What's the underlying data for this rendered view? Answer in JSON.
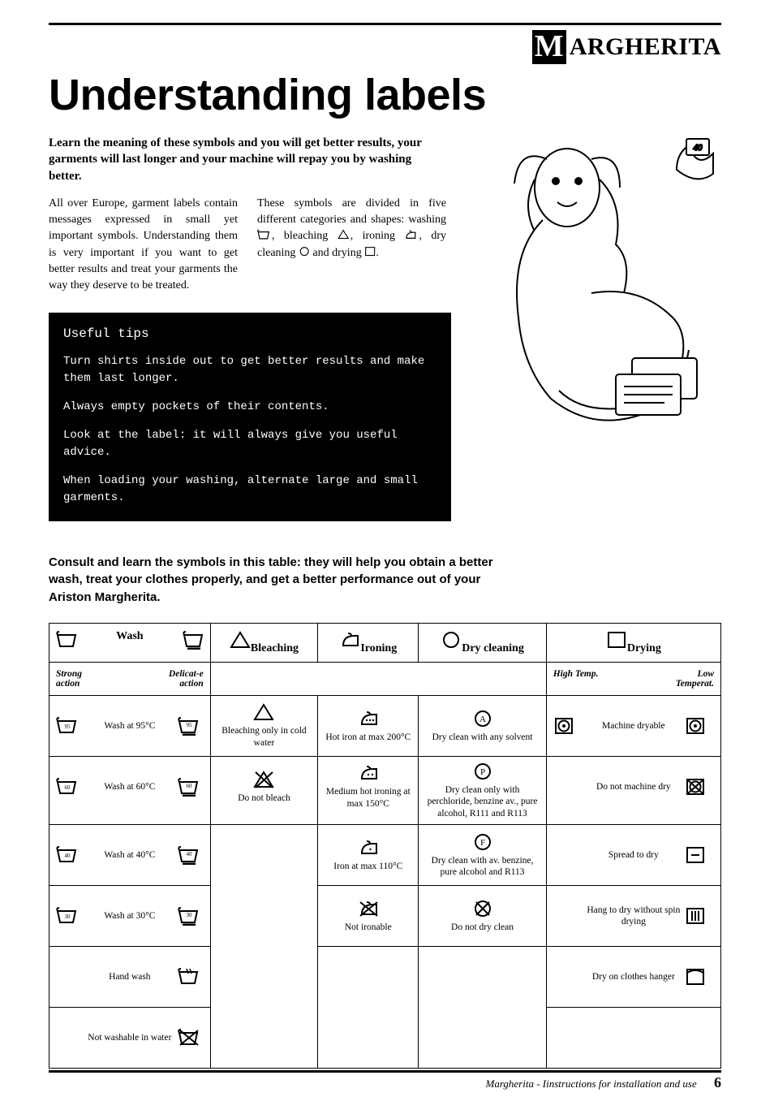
{
  "brand": {
    "initial": "M",
    "rest": "ARGHERITA"
  },
  "title": "Understanding labels",
  "lead": "Learn the meaning of these symbols and you will get better results, your garments will last longer and your machine will repay you by washing better.",
  "intro_col1": "All over Europe, garment labels contain messages expressed in small yet important symbols. Understanding them is very important if you want to get better results and treat your garments the way they deserve to be treated.",
  "intro_col2_a": "These symbols are divided in five different categories and shapes: washing ",
  "intro_col2_b": ", bleaching ",
  "intro_col2_c": ", ironing ",
  "intro_col2_d": ", dry cleaning ",
  "intro_col2_e": " and drying ",
  "intro_col2_f": ".",
  "tips": {
    "header": "Useful tips",
    "lines": [
      "Turn shirts inside out to get better results and make them last longer.",
      "Always empty pockets of their contents.",
      "Look at the label: it will always give you useful advice.",
      "When loading your washing, alternate large and small garments."
    ]
  },
  "consult": "Consult and learn the symbols in this table: they will help you obtain a better wash, treat your clothes properly, and get a better performance out of your Ariston Margherita.",
  "table": {
    "headers": [
      "Wash",
      "Bleaching",
      "Ironing",
      "Dry cleaning",
      "Drying"
    ],
    "wash_sub_left": "Strong action",
    "wash_sub_right": "Delicat-e action",
    "dry_sub_left": "High Temp.",
    "dry_sub_right": "Low Temperat.",
    "rows": [
      {
        "wash": "Wash at 95°C",
        "wash_t": "95",
        "bleach": "Bleaching only in cold water",
        "iron": "Hot iron at max 200°C",
        "dry": "Dry clean with any solvent",
        "drying": "Machine dryable"
      },
      {
        "wash": "Wash at 60°C",
        "wash_t": "60",
        "bleach": "Do not bleach",
        "iron": "Medium hot ironing at max 150°C",
        "dry": "Dry clean only with perchloride, benzine av., pure alcohol, R111 and R113",
        "drying": "Do not machine dry"
      },
      {
        "wash": "Wash at 40°C",
        "wash_t": "40",
        "bleach": "",
        "iron": "Iron at max 110°C",
        "dry": "Dry clean with av. benzine, pure alcohol and R113",
        "drying": "Spread to dry"
      },
      {
        "wash": "Wash at 30°C",
        "wash_t": "30",
        "bleach": "",
        "iron": "Not ironable",
        "dry": "Do not dry clean",
        "drying": "Hang to dry without spin drying"
      },
      {
        "wash": "Hand wash",
        "wash_t": "",
        "bleach": "",
        "iron": "",
        "dry": "",
        "drying": "Dry on clothes hanger"
      },
      {
        "wash": "Not washable in water",
        "wash_t": "",
        "bleach": "",
        "iron": "",
        "dry": "",
        "drying": ""
      }
    ]
  },
  "footer": {
    "text": "Margherita - Iinstructions for installation and use",
    "page": "6"
  }
}
